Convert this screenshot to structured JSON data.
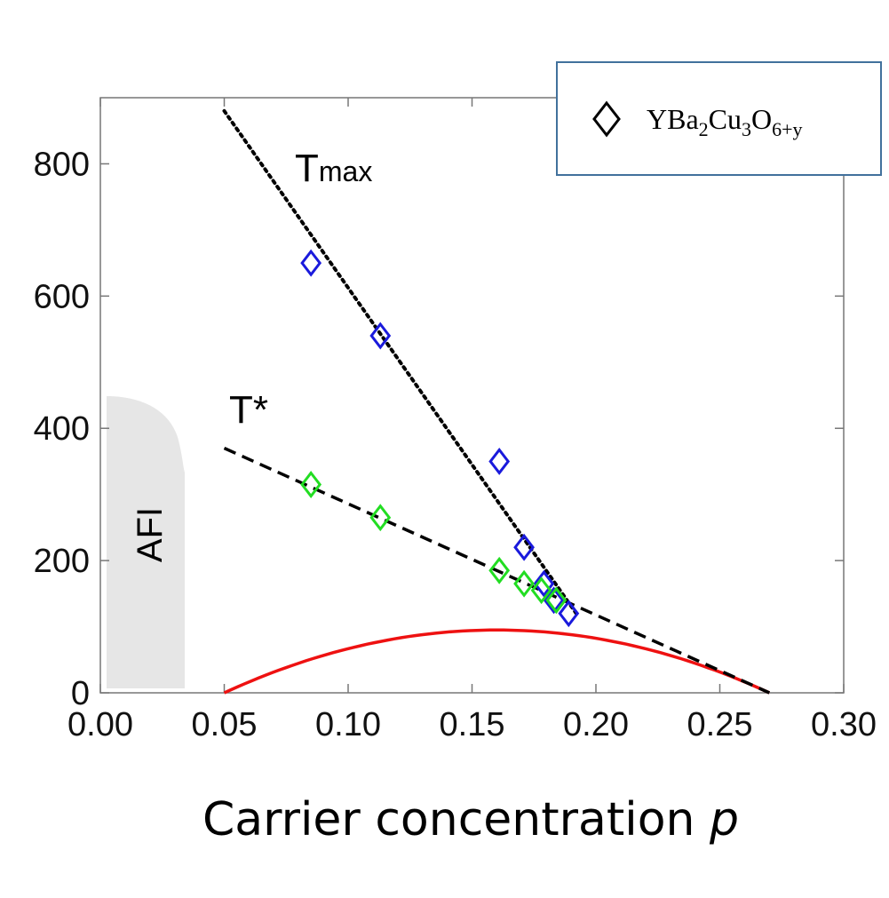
{
  "chart_data": {
    "type": "scatter",
    "xlabel": "Carrier concentration",
    "xlabel_var": "p",
    "ylabel": "",
    "xlim": [
      0.0,
      0.3
    ],
    "ylim": [
      0,
      900
    ],
    "x_ticks": [
      0.0,
      0.05,
      0.1,
      0.15,
      0.2,
      0.25,
      0.3
    ],
    "x_tick_labels": [
      "0.00",
      "0.05",
      "0.10",
      "0.15",
      "0.20",
      "0.25",
      "0.30"
    ],
    "y_ticks": [
      0,
      200,
      400,
      600,
      800
    ],
    "y_tick_labels": [
      "0",
      "200",
      "400",
      "600",
      "800"
    ],
    "grid": false,
    "legend": {
      "placement": "top-right",
      "entries": [
        {
          "marker": "diamond",
          "base": "YBa",
          "sub1": "2",
          "mid1": "Cu",
          "sub2": "3",
          "mid2": "O",
          "sub3": "6+y"
        }
      ]
    },
    "series": [
      {
        "marker": "diamond",
        "color": "#1a1adc",
        "points": [
          {
            "x": 0.085,
            "y": 650
          },
          {
            "x": 0.113,
            "y": 540
          },
          {
            "x": 0.161,
            "y": 350
          },
          {
            "x": 0.171,
            "y": 220
          },
          {
            "x": 0.179,
            "y": 165
          },
          {
            "x": 0.183,
            "y": 140
          },
          {
            "x": 0.189,
            "y": 120
          }
        ]
      },
      {
        "marker": "diamond",
        "color": "#22dd22",
        "points": [
          {
            "x": 0.085,
            "y": 315
          },
          {
            "x": 0.113,
            "y": 265
          },
          {
            "x": 0.161,
            "y": 185
          },
          {
            "x": 0.171,
            "y": 165
          },
          {
            "x": 0.178,
            "y": 155
          },
          {
            "x": 0.184,
            "y": 140
          }
        ]
      }
    ],
    "lines": [
      {
        "label": "Tmax",
        "style": "dotted",
        "color": "#000000",
        "x": [
          0.05,
          0.193
        ],
        "y": [
          880,
          115
        ]
      },
      {
        "label": "T*",
        "style": "dashed",
        "color": "#000000",
        "x": [
          0.05,
          0.27
        ],
        "y": [
          370,
          0
        ]
      }
    ],
    "dome": {
      "color": "#ee1111",
      "x_start": 0.05,
      "x_end": 0.27,
      "x_peak": 0.16,
      "y_peak": 95
    },
    "afi_region": {
      "label": "AFI",
      "color": "#e6e6e6",
      "x_range": [
        0.0,
        0.034
      ],
      "y_top": 450
    },
    "annotations": [
      {
        "text_main": "T",
        "text_sub": "max"
      },
      {
        "text_main": "T*"
      }
    ]
  }
}
